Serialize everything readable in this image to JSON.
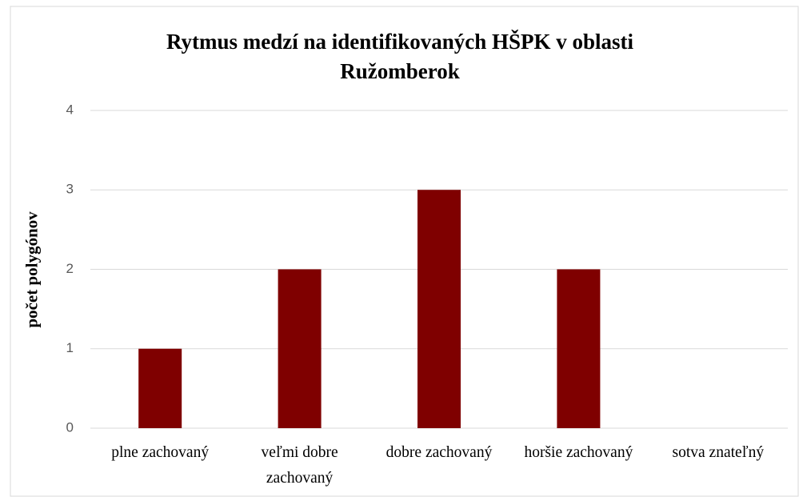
{
  "chart_data": {
    "type": "bar",
    "title": "Rytmus medzí na identifikovaných HŠPK v oblasti Ružomberok",
    "y_label": "počet polygónov",
    "categories": [
      "plne zachovaný",
      "veľmi dobre zachovaný",
      "dobre zachovaný",
      "horšie zachovaný",
      "sotva znateľný"
    ],
    "values": [
      1,
      2,
      3,
      2,
      0
    ],
    "color": "#7f0000",
    "ylim": [
      0,
      4
    ],
    "yticks": [
      0,
      1,
      2,
      3,
      4
    ],
    "grid": true
  }
}
